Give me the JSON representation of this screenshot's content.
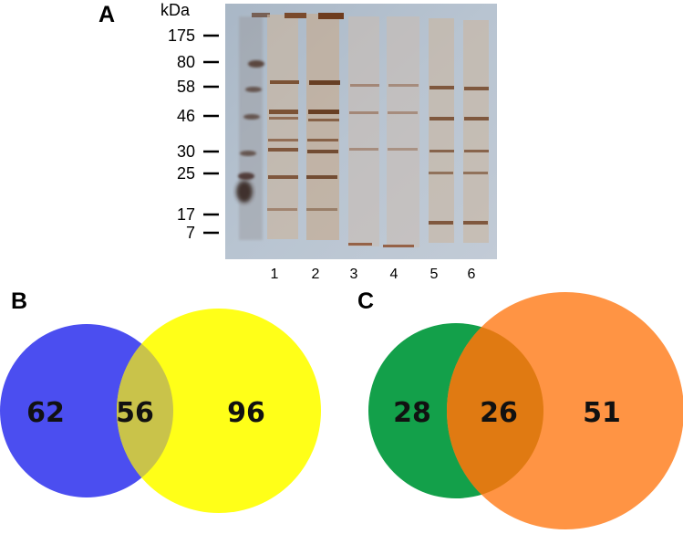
{
  "panels": {
    "a": {
      "letter": "A",
      "unit_label": "kDa",
      "markers": [
        "175",
        "80",
        "58",
        "46",
        "30",
        "25",
        "17",
        "7"
      ],
      "lanes": [
        "1",
        "2",
        "3",
        "4",
        "5",
        "6"
      ]
    },
    "b": {
      "letter": "B",
      "left_only": "62",
      "overlap": "56",
      "right_only": "96",
      "colors": {
        "left": "#4b4ef0",
        "right": "#ffff18",
        "overlap": "#c9c34a"
      }
    },
    "c": {
      "letter": "C",
      "left_only": "28",
      "overlap": "26",
      "right_only": "51",
      "colors": {
        "left": "#13a04a",
        "right": "#ff9444",
        "overlap": "#e07a12"
      }
    }
  }
}
